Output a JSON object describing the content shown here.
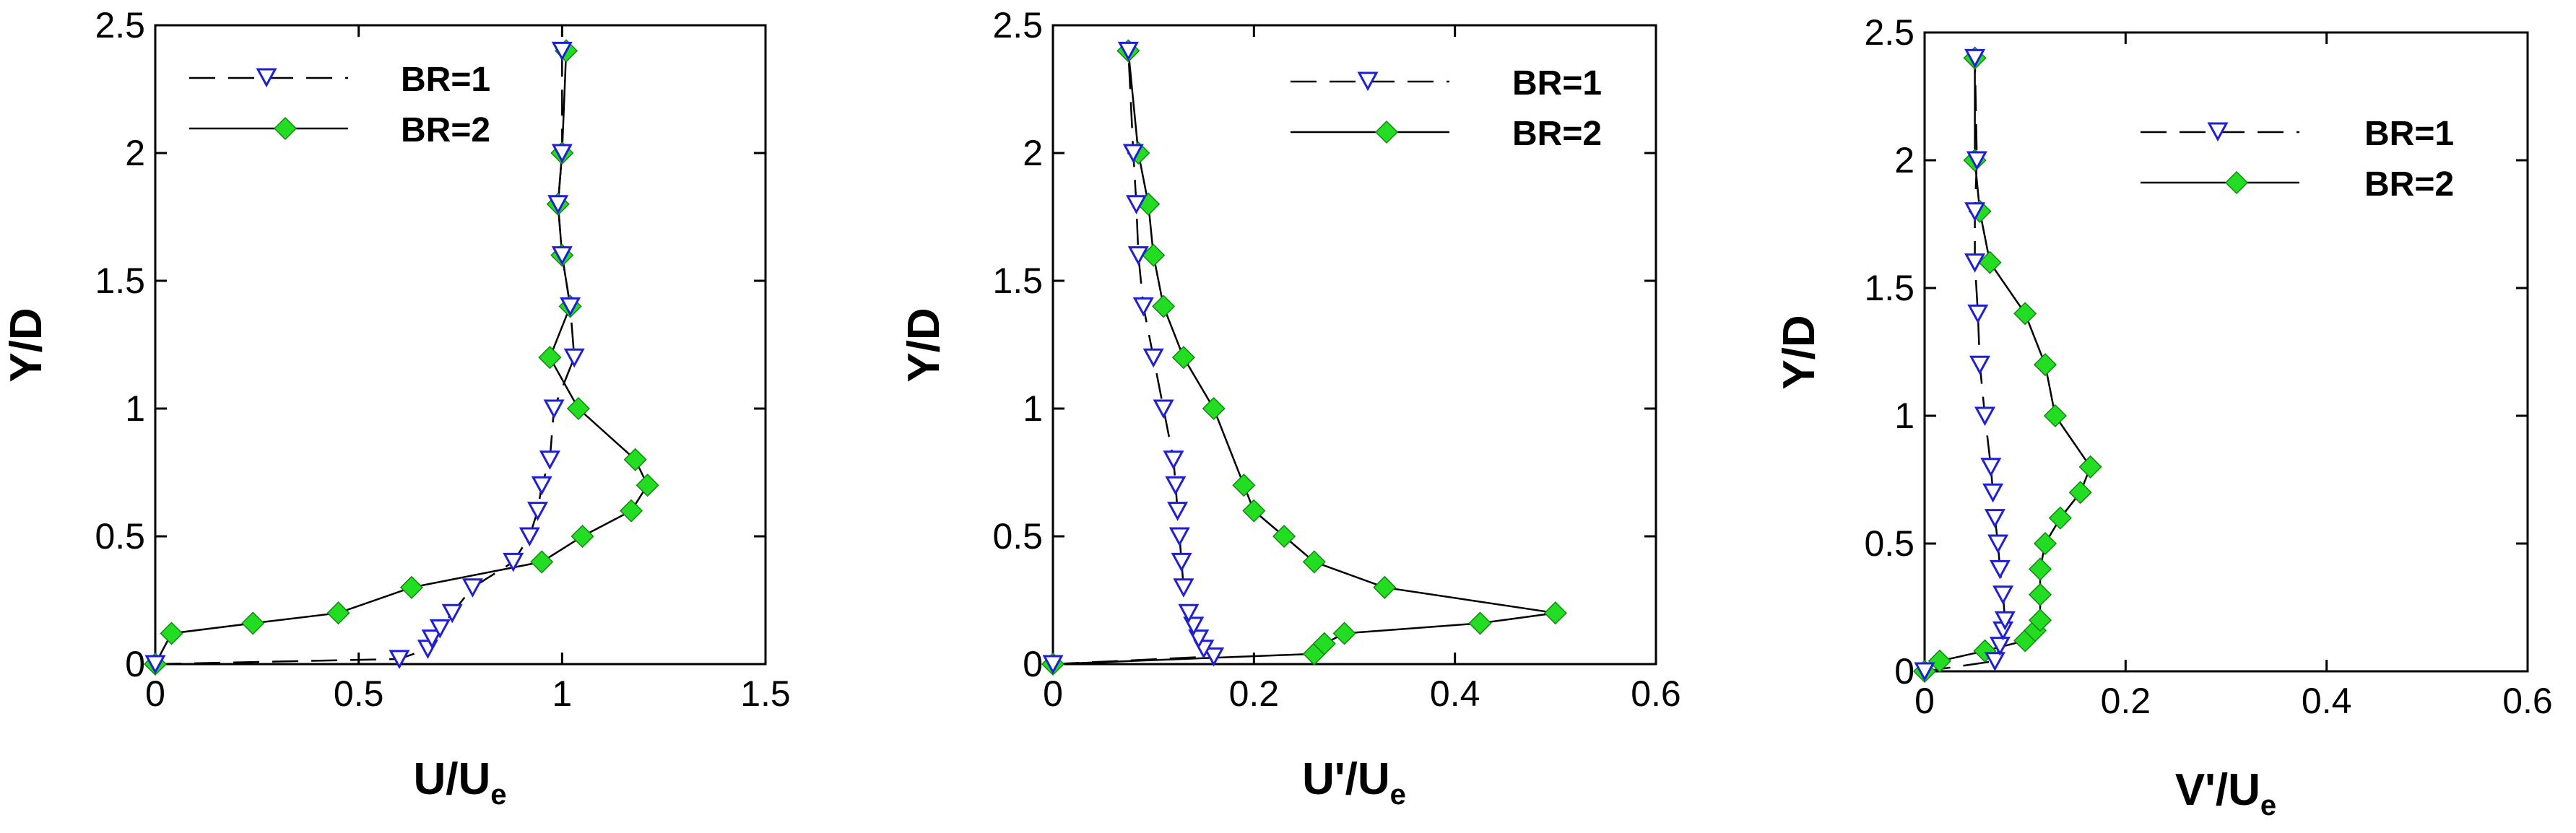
{
  "colors": {
    "br1_marker": "#1f1fd6",
    "br2_marker": "#22dd22",
    "lines": "#000000",
    "background": "#ffffff"
  },
  "chart_data": [
    {
      "type": "line",
      "xlabel_main": "U/U",
      "xlabel_sub": "e",
      "ylabel": "Y/D",
      "xlim": [
        0,
        1.5
      ],
      "ylim": [
        0,
        2.5
      ],
      "xticks": [
        "0",
        "0.5",
        "1",
        "1.5"
      ],
      "yticks": [
        "0",
        "0.5",
        "1",
        "1.5",
        "2",
        "2.5"
      ],
      "legend_position": "top-left",
      "grid": false,
      "series": [
        {
          "name": "BR=1",
          "style": "dashed",
          "marker": "triangle-down-open",
          "points": [
            [
              0,
              0
            ],
            [
              0.6,
              0.02
            ],
            [
              0.67,
              0.06
            ],
            [
              0.68,
              0.1
            ],
            [
              0.7,
              0.14
            ],
            [
              0.73,
              0.2
            ],
            [
              0.78,
              0.3
            ],
            [
              0.88,
              0.4
            ],
            [
              0.92,
              0.5
            ],
            [
              0.94,
              0.6
            ],
            [
              0.95,
              0.7
            ],
            [
              0.97,
              0.8
            ],
            [
              0.98,
              1.0
            ],
            [
              1.03,
              1.2
            ],
            [
              1.02,
              1.4
            ],
            [
              1.0,
              1.6
            ],
            [
              0.99,
              1.8
            ],
            [
              1.0,
              2.0
            ],
            [
              1.0,
              2.4
            ]
          ]
        },
        {
          "name": "BR=2",
          "style": "solid",
          "marker": "diamond-filled",
          "points": [
            [
              0,
              0
            ],
            [
              0.04,
              0.12
            ],
            [
              0.24,
              0.16
            ],
            [
              0.45,
              0.2
            ],
            [
              0.63,
              0.3
            ],
            [
              0.95,
              0.4
            ],
            [
              1.05,
              0.5
            ],
            [
              1.17,
              0.6
            ],
            [
              1.21,
              0.7
            ],
            [
              1.18,
              0.8
            ],
            [
              1.04,
              1.0
            ],
            [
              0.97,
              1.2
            ],
            [
              1.02,
              1.4
            ],
            [
              1.0,
              1.6
            ],
            [
              0.99,
              1.8
            ],
            [
              1.0,
              2.0
            ],
            [
              1.01,
              2.4
            ]
          ]
        }
      ]
    },
    {
      "type": "line",
      "xlabel_main": "U'/U",
      "xlabel_sub": "e",
      "ylabel": "Y/D",
      "xlim": [
        0,
        0.6
      ],
      "ylim": [
        0,
        2.5
      ],
      "xticks": [
        "0",
        "0.2",
        "0.4",
        "0.6"
      ],
      "yticks": [
        "0",
        "0.5",
        "1",
        "1.5",
        "2",
        "2.5"
      ],
      "legend_position": "top-right",
      "grid": false,
      "series": [
        {
          "name": "BR=1",
          "style": "dashed",
          "marker": "triangle-down-open",
          "points": [
            [
              0,
              0
            ],
            [
              0.16,
              0.03
            ],
            [
              0.15,
              0.06
            ],
            [
              0.145,
              0.1
            ],
            [
              0.14,
              0.15
            ],
            [
              0.135,
              0.2
            ],
            [
              0.13,
              0.3
            ],
            [
              0.128,
              0.4
            ],
            [
              0.126,
              0.5
            ],
            [
              0.124,
              0.6
            ],
            [
              0.122,
              0.7
            ],
            [
              0.12,
              0.8
            ],
            [
              0.11,
              1.0
            ],
            [
              0.1,
              1.2
            ],
            [
              0.09,
              1.4
            ],
            [
              0.085,
              1.6
            ],
            [
              0.083,
              1.8
            ],
            [
              0.08,
              2.0
            ],
            [
              0.075,
              2.4
            ]
          ]
        },
        {
          "name": "BR=2",
          "style": "solid",
          "marker": "diamond-filled",
          "points": [
            [
              0,
              0
            ],
            [
              0.26,
              0.04
            ],
            [
              0.27,
              0.08
            ],
            [
              0.29,
              0.12
            ],
            [
              0.425,
              0.16
            ],
            [
              0.5,
              0.2
            ],
            [
              0.33,
              0.3
            ],
            [
              0.26,
              0.4
            ],
            [
              0.23,
              0.5
            ],
            [
              0.2,
              0.6
            ],
            [
              0.19,
              0.7
            ],
            [
              0.16,
              1.0
            ],
            [
              0.13,
              1.2
            ],
            [
              0.11,
              1.4
            ],
            [
              0.1,
              1.6
            ],
            [
              0.095,
              1.8
            ],
            [
              0.085,
              2.0
            ],
            [
              0.075,
              2.4
            ]
          ]
        }
      ]
    },
    {
      "type": "line",
      "xlabel_main": "V'/U",
      "xlabel_sub": "e",
      "ylabel": "Y/D",
      "xlim": [
        0,
        0.6
      ],
      "ylim": [
        0,
        2.5
      ],
      "xticks": [
        "0",
        "0.2",
        "0.4",
        "0.6"
      ],
      "yticks": [
        "0",
        "0.5",
        "1",
        "1.5",
        "2",
        "2.5"
      ],
      "legend_position": "top-right",
      "grid": false,
      "series": [
        {
          "name": "BR=1",
          "style": "dashed",
          "marker": "triangle-down-open",
          "points": [
            [
              0,
              0
            ],
            [
              0.07,
              0.04
            ],
            [
              0.075,
              0.1
            ],
            [
              0.078,
              0.16
            ],
            [
              0.08,
              0.2
            ],
            [
              0.078,
              0.3
            ],
            [
              0.075,
              0.4
            ],
            [
              0.073,
              0.5
            ],
            [
              0.07,
              0.6
            ],
            [
              0.068,
              0.7
            ],
            [
              0.066,
              0.8
            ],
            [
              0.06,
              1.0
            ],
            [
              0.055,
              1.2
            ],
            [
              0.053,
              1.4
            ],
            [
              0.05,
              1.6
            ],
            [
              0.05,
              1.8
            ],
            [
              0.052,
              2.0
            ],
            [
              0.05,
              2.4
            ]
          ]
        },
        {
          "name": "BR=2",
          "style": "solid",
          "marker": "diamond-filled",
          "points": [
            [
              0,
              0
            ],
            [
              0.015,
              0.04
            ],
            [
              0.06,
              0.08
            ],
            [
              0.1,
              0.12
            ],
            [
              0.11,
              0.16
            ],
            [
              0.115,
              0.2
            ],
            [
              0.115,
              0.3
            ],
            [
              0.115,
              0.4
            ],
            [
              0.12,
              0.5
            ],
            [
              0.135,
              0.6
            ],
            [
              0.155,
              0.7
            ],
            [
              0.165,
              0.8
            ],
            [
              0.13,
              1.0
            ],
            [
              0.12,
              1.2
            ],
            [
              0.1,
              1.4
            ],
            [
              0.065,
              1.6
            ],
            [
              0.055,
              1.8
            ],
            [
              0.05,
              2.0
            ],
            [
              0.05,
              2.4
            ]
          ]
        }
      ]
    }
  ]
}
